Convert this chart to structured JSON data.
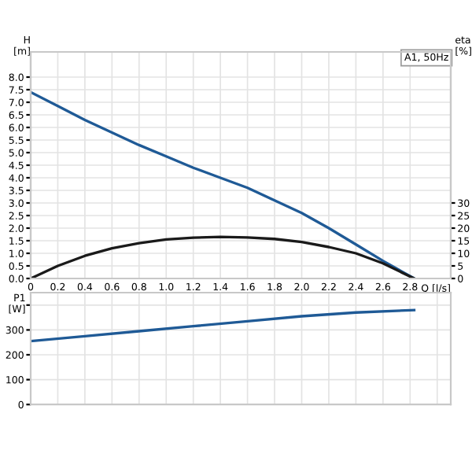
{
  "chart_data": [
    {
      "type": "line",
      "xlabel": "Q [l/s]",
      "ylabel": "H\n[m]",
      "y2label": "eta\n[%]",
      "annotations": [
        "A1, 50Hz"
      ],
      "x": [
        0,
        0.2,
        0.4,
        0.6,
        0.8,
        1.0,
        1.2,
        1.4,
        1.6,
        1.8,
        2.0,
        2.2,
        2.4,
        2.6,
        2.83
      ],
      "series": [
        {
          "color": "#1f5a96",
          "values": [
            7.4,
            6.85,
            6.3,
            5.8,
            5.3,
            4.85,
            4.4,
            4.0,
            3.6,
            3.1,
            2.6,
            2.0,
            1.35,
            0.7,
            0
          ]
        },
        {
          "color": "#1a1a1a",
          "axis": "y2",
          "values": [
            0,
            5,
            9,
            12,
            14,
            15.5,
            16.2,
            16.5,
            16.3,
            15.7,
            14.5,
            12.5,
            10,
            6,
            0
          ]
        }
      ],
      "xlim": [
        0,
        3.1
      ],
      "xticks": [
        0,
        0.2,
        0.4,
        0.6,
        0.8,
        {
          "value": 1,
          "label": "1.0"
        },
        1.2,
        1.4,
        1.6,
        1.8,
        {
          "value": 2,
          "label": "2.0"
        },
        2.2,
        2.4,
        2.6,
        2.8
      ],
      "ylim": [
        0,
        9.0
      ],
      "yticks": [
        {
          "value": 0,
          "label": "0.0"
        },
        0.5,
        {
          "value": 1,
          "label": "1.0"
        },
        1.5,
        {
          "value": 2,
          "label": "2.0"
        },
        2.5,
        {
          "value": 3,
          "label": "3.0"
        },
        3.5,
        {
          "value": 4,
          "label": "4.0"
        },
        4.5,
        {
          "value": 5,
          "label": "5.0"
        },
        5.5,
        {
          "value": 6,
          "label": "6.0"
        },
        6.5,
        {
          "value": 7,
          "label": "7.0"
        },
        7.5,
        {
          "value": 8,
          "label": "8.0"
        }
      ],
      "y2lim": [
        0,
        90
      ],
      "y2ticks": [
        0,
        5,
        10,
        15,
        20,
        25,
        30
      ],
      "grid": true
    },
    {
      "type": "line",
      "ylabel": "P1\n[W]",
      "x": [
        0,
        0.4,
        0.8,
        1.2,
        1.6,
        2.0,
        2.4,
        2.83
      ],
      "series": [
        {
          "color": "#1f5a96",
          "values": [
            255,
            275,
            295,
            315,
            335,
            355,
            370,
            380
          ]
        }
      ],
      "xlim": [
        0,
        3.1
      ],
      "ylim": [
        0,
        450
      ],
      "yticks": [
        0,
        100,
        200,
        300,
        {
          "value": 400,
          "label": null
        }
      ],
      "tick_labels": "y",
      "grid": true
    }
  ]
}
